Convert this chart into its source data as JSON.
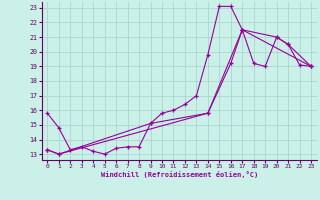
{
  "xlabel": "Windchill (Refroidissement éolien,°C)",
  "bg_color": "#caf0e8",
  "grid_color": "#a8d8d0",
  "line_color": "#990099",
  "axis_color": "#660066",
  "xlim": [
    -0.5,
    23.5
  ],
  "ylim": [
    12.6,
    23.4
  ],
  "xticks": [
    0,
    1,
    2,
    3,
    4,
    5,
    6,
    7,
    8,
    9,
    10,
    11,
    12,
    13,
    14,
    15,
    16,
    17,
    18,
    19,
    20,
    21,
    22,
    23
  ],
  "yticks": [
    13,
    14,
    15,
    16,
    17,
    18,
    19,
    20,
    21,
    22,
    23
  ],
  "line1_x": [
    0,
    1,
    2,
    3,
    4,
    5,
    6,
    7,
    8,
    9,
    10,
    11,
    12,
    13,
    14,
    15,
    16,
    17,
    18,
    19,
    20,
    21,
    22,
    23
  ],
  "line1_y": [
    15.8,
    14.8,
    13.3,
    13.5,
    13.2,
    13.0,
    13.4,
    13.5,
    13.5,
    15.1,
    15.8,
    16.0,
    16.4,
    17.0,
    19.8,
    23.1,
    23.1,
    21.5,
    19.2,
    19.0,
    21.0,
    20.5,
    19.1,
    19.0
  ],
  "line2_x": [
    0,
    1,
    14,
    16,
    17,
    20,
    21,
    23
  ],
  "line2_y": [
    13.3,
    13.0,
    15.8,
    19.2,
    21.5,
    21.0,
    20.5,
    19.0
  ],
  "line3_x": [
    0,
    1,
    9,
    14,
    17,
    23
  ],
  "line3_y": [
    13.3,
    13.0,
    15.1,
    15.8,
    21.5,
    19.0
  ]
}
